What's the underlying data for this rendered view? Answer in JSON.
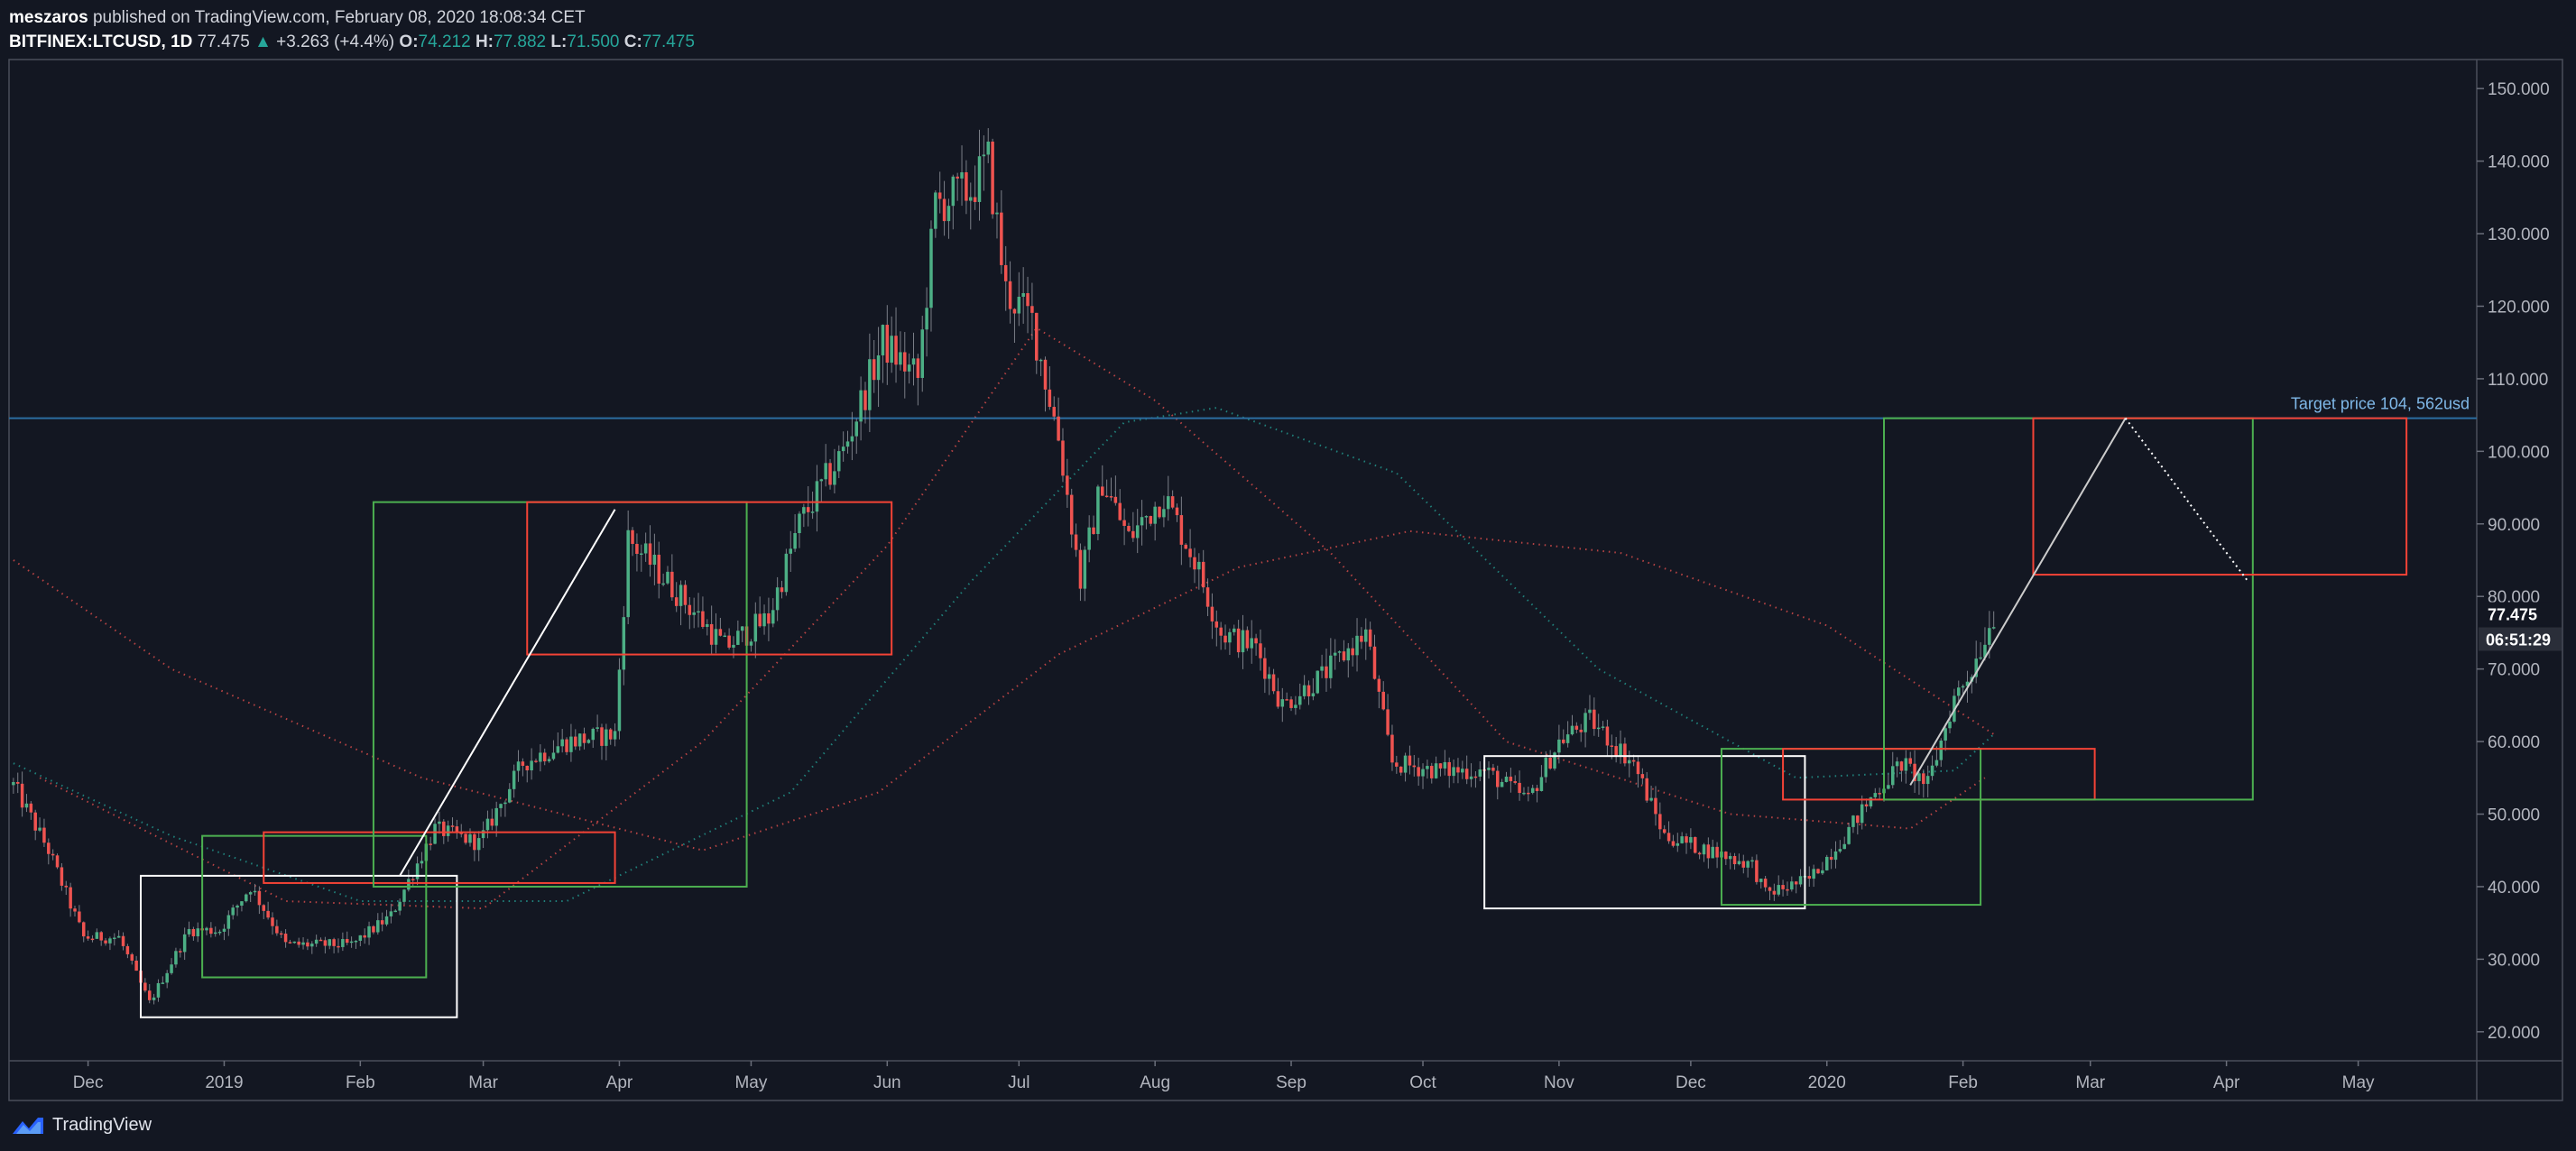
{
  "header": {
    "author": "meszaros",
    "published": "published on TradingView.com, February 08, 2020 18:08:34 CET",
    "symbol": "BITFINEX:LTCUSD, 1D",
    "last": "77.475",
    "change_arrow": "▲",
    "change": "+3.263 (+4.4%)",
    "o_label": "O:",
    "o_value": "74.212",
    "h_label": "H:",
    "h_value": "77.882",
    "l_label": "L:",
    "l_value": "71.500",
    "c_label": "C:",
    "c_value": "77.475"
  },
  "footer": {
    "brand": "TradingView"
  },
  "colors": {
    "background": "#131722",
    "up": "#26a69a",
    "up_candle": "#4caf85",
    "down_candle": "#ef5350",
    "target_line": "#2b6ea1",
    "box_green": "#4caf50",
    "box_red": "#f44336",
    "box_white": "#ffffff"
  },
  "chart_data": {
    "type": "candlestick",
    "symbol": "LTCUSD",
    "timeframe": "1D",
    "y_axis": {
      "ticks": [
        20,
        30,
        40,
        50,
        60,
        70,
        80,
        90,
        100,
        110,
        120,
        130,
        140,
        150
      ],
      "tick_labels": [
        "20.000",
        "30.000",
        "40.000",
        "50.000",
        "60.000",
        "70.000",
        "80.000",
        "90.000",
        "100.000",
        "110.000",
        "120.000",
        "130.000",
        "140.000",
        "150.000"
      ],
      "range": [
        16,
        154
      ]
    },
    "x_axis": {
      "range": [
        "2018-11-13",
        "2020-05-28"
      ],
      "ticks": [
        {
          "date": "2018-12-01",
          "label": "Dec"
        },
        {
          "date": "2019-01-01",
          "label": "2019"
        },
        {
          "date": "2019-02-01",
          "label": "Feb"
        },
        {
          "date": "2019-03-01",
          "label": "Mar"
        },
        {
          "date": "2019-04-01",
          "label": "Apr"
        },
        {
          "date": "2019-05-01",
          "label": "May"
        },
        {
          "date": "2019-06-01",
          "label": "Jun"
        },
        {
          "date": "2019-07-01",
          "label": "Jul"
        },
        {
          "date": "2019-08-01",
          "label": "Aug"
        },
        {
          "date": "2019-09-01",
          "label": "Sep"
        },
        {
          "date": "2019-10-01",
          "label": "Oct"
        },
        {
          "date": "2019-11-01",
          "label": "Nov"
        },
        {
          "date": "2019-12-01",
          "label": "Dec"
        },
        {
          "date": "2020-01-01",
          "label": "2020"
        },
        {
          "date": "2020-02-01",
          "label": "Feb"
        },
        {
          "date": "2020-03-01",
          "label": "Mar"
        },
        {
          "date": "2020-04-01",
          "label": "Apr"
        },
        {
          "date": "2020-05-01",
          "label": "May"
        }
      ]
    },
    "price_path": [
      {
        "date": "2018-11-14",
        "close": 54
      },
      {
        "date": "2018-11-22",
        "close": 45
      },
      {
        "date": "2018-11-30",
        "close": 33
      },
      {
        "date": "2018-12-08",
        "close": 33
      },
      {
        "date": "2018-12-15",
        "close": 24
      },
      {
        "date": "2018-12-24",
        "close": 34
      },
      {
        "date": "2018-12-31",
        "close": 34
      },
      {
        "date": "2019-01-07",
        "close": 40
      },
      {
        "date": "2019-01-15",
        "close": 32
      },
      {
        "date": "2019-01-30",
        "close": 32
      },
      {
        "date": "2019-02-08",
        "close": 36
      },
      {
        "date": "2019-02-18",
        "close": 48
      },
      {
        "date": "2019-02-28",
        "close": 46
      },
      {
        "date": "2019-03-10",
        "close": 57
      },
      {
        "date": "2019-03-20",
        "close": 60
      },
      {
        "date": "2019-03-31",
        "close": 61
      },
      {
        "date": "2019-04-03",
        "close": 88
      },
      {
        "date": "2019-04-15",
        "close": 80
      },
      {
        "date": "2019-04-25",
        "close": 73
      },
      {
        "date": "2019-05-05",
        "close": 77
      },
      {
        "date": "2019-05-12",
        "close": 90
      },
      {
        "date": "2019-05-22",
        "close": 100
      },
      {
        "date": "2019-05-31",
        "close": 115
      },
      {
        "date": "2019-06-08",
        "close": 110
      },
      {
        "date": "2019-06-12",
        "close": 134
      },
      {
        "date": "2019-06-20",
        "close": 136
      },
      {
        "date": "2019-06-24",
        "close": 140
      },
      {
        "date": "2019-06-28",
        "close": 122
      },
      {
        "date": "2019-07-04",
        "close": 118
      },
      {
        "date": "2019-07-10",
        "close": 102
      },
      {
        "date": "2019-07-15",
        "close": 82
      },
      {
        "date": "2019-07-20",
        "close": 96
      },
      {
        "date": "2019-07-26",
        "close": 88
      },
      {
        "date": "2019-08-03",
        "close": 94
      },
      {
        "date": "2019-08-10",
        "close": 85
      },
      {
        "date": "2019-08-16",
        "close": 75
      },
      {
        "date": "2019-08-24",
        "close": 73
      },
      {
        "date": "2019-08-30",
        "close": 65
      },
      {
        "date": "2019-09-08",
        "close": 69
      },
      {
        "date": "2019-09-18",
        "close": 75
      },
      {
        "date": "2019-09-24",
        "close": 57
      },
      {
        "date": "2019-10-05",
        "close": 56
      },
      {
        "date": "2019-10-15",
        "close": 56
      },
      {
        "date": "2019-10-25",
        "close": 52
      },
      {
        "date": "2019-11-01",
        "close": 60
      },
      {
        "date": "2019-11-08",
        "close": 63
      },
      {
        "date": "2019-11-18",
        "close": 57
      },
      {
        "date": "2019-11-25",
        "close": 47
      },
      {
        "date": "2019-12-05",
        "close": 45
      },
      {
        "date": "2019-12-15",
        "close": 43
      },
      {
        "date": "2019-12-18",
        "close": 39
      },
      {
        "date": "2019-12-28",
        "close": 41
      },
      {
        "date": "2020-01-05",
        "close": 47
      },
      {
        "date": "2020-01-12",
        "close": 53
      },
      {
        "date": "2020-01-18",
        "close": 57
      },
      {
        "date": "2020-01-24",
        "close": 54
      },
      {
        "date": "2020-01-30",
        "close": 66
      },
      {
        "date": "2020-02-03",
        "close": 70
      },
      {
        "date": "2020-02-08",
        "close": 77.475
      }
    ],
    "moving_averages": [
      {
        "color": "#ef5350",
        "points": [
          [
            "2018-11-20",
            55
          ],
          [
            "2019-01-15",
            38
          ],
          [
            "2019-03-01",
            37
          ],
          [
            "2019-04-20",
            60
          ],
          [
            "2019-06-01",
            87
          ],
          [
            "2019-07-05",
            117
          ],
          [
            "2019-08-01",
            107
          ],
          [
            "2019-09-10",
            86
          ],
          [
            "2019-10-20",
            60
          ],
          [
            "2019-12-10",
            50
          ],
          [
            "2020-01-20",
            48
          ],
          [
            "2020-02-06",
            55
          ]
        ]
      },
      {
        "color": "#26a69a",
        "points": [
          [
            "2018-11-14",
            57
          ],
          [
            "2018-12-20",
            47
          ],
          [
            "2019-02-01",
            38
          ],
          [
            "2019-03-20",
            38
          ],
          [
            "2019-05-10",
            53
          ],
          [
            "2019-06-20",
            82
          ],
          [
            "2019-07-25",
            104
          ],
          [
            "2019-08-15",
            106
          ],
          [
            "2019-09-25",
            97
          ],
          [
            "2019-11-10",
            70
          ],
          [
            "2019-12-25",
            55
          ],
          [
            "2020-01-30",
            56
          ],
          [
            "2020-02-08",
            61
          ]
        ]
      },
      {
        "color": "#ef5350",
        "points": [
          [
            "2018-11-14",
            85
          ],
          [
            "2018-12-20",
            70
          ],
          [
            "2019-02-15",
            55
          ],
          [
            "2019-04-20",
            45
          ],
          [
            "2019-05-30",
            53
          ],
          [
            "2019-07-10",
            72
          ],
          [
            "2019-08-20",
            84
          ],
          [
            "2019-09-28",
            89
          ],
          [
            "2019-11-15",
            86
          ],
          [
            "2020-01-01",
            76
          ],
          [
            "2020-02-08",
            61
          ]
        ]
      }
    ],
    "target": {
      "price": 104.562,
      "label": "Target price 104, 562usd"
    },
    "last_price_label": "77.475",
    "countdown_label": "06:51:29",
    "boxes": [
      {
        "color": "#ffffff",
        "from": "2018-12-13",
        "to": "2019-02-23",
        "low": 22,
        "high": 41.5
      },
      {
        "color": "#4caf50",
        "from": "2018-12-27",
        "to": "2019-02-16",
        "low": 27.5,
        "high": 47
      },
      {
        "color": "#f44336",
        "from": "2019-01-10",
        "to": "2019-03-31",
        "low": 40.5,
        "high": 47.5
      },
      {
        "color": "#4caf50",
        "from": "2019-02-04",
        "to": "2019-04-30",
        "low": 40,
        "high": 93
      },
      {
        "color": "#f44336",
        "from": "2019-03-11",
        "to": "2019-06-02",
        "low": 72,
        "high": 93
      },
      {
        "color": "#ffffff",
        "from": "2019-10-15",
        "to": "2019-12-27",
        "low": 37,
        "high": 58
      },
      {
        "color": "#4caf50",
        "from": "2019-12-08",
        "to": "2020-02-05",
        "low": 37.5,
        "high": 59
      },
      {
        "color": "#f44336",
        "from": "2019-12-22",
        "to": "2020-03-02",
        "low": 52,
        "high": 59
      },
      {
        "color": "#4caf50",
        "from": "2020-01-14",
        "to": "2020-04-07",
        "low": 52,
        "high": 104.562
      },
      {
        "color": "#f44336",
        "from": "2020-02-17",
        "to": "2020-05-12",
        "low": 83,
        "high": 104.562
      }
    ],
    "trend_lines": [
      {
        "color": "#ffffff",
        "style": "solid",
        "from": [
          "2019-02-10",
          41.5
        ],
        "to": [
          "2019-03-31",
          92
        ]
      },
      {
        "color": "#cccccc",
        "style": "solid",
        "from": [
          "2020-01-20",
          54
        ],
        "to": [
          "2020-03-09",
          104.562
        ]
      },
      {
        "color": "#ffffff",
        "style": "dotted",
        "from": [
          "2020-03-09",
          104.562
        ],
        "to": [
          "2020-04-06",
          82
        ]
      }
    ]
  }
}
